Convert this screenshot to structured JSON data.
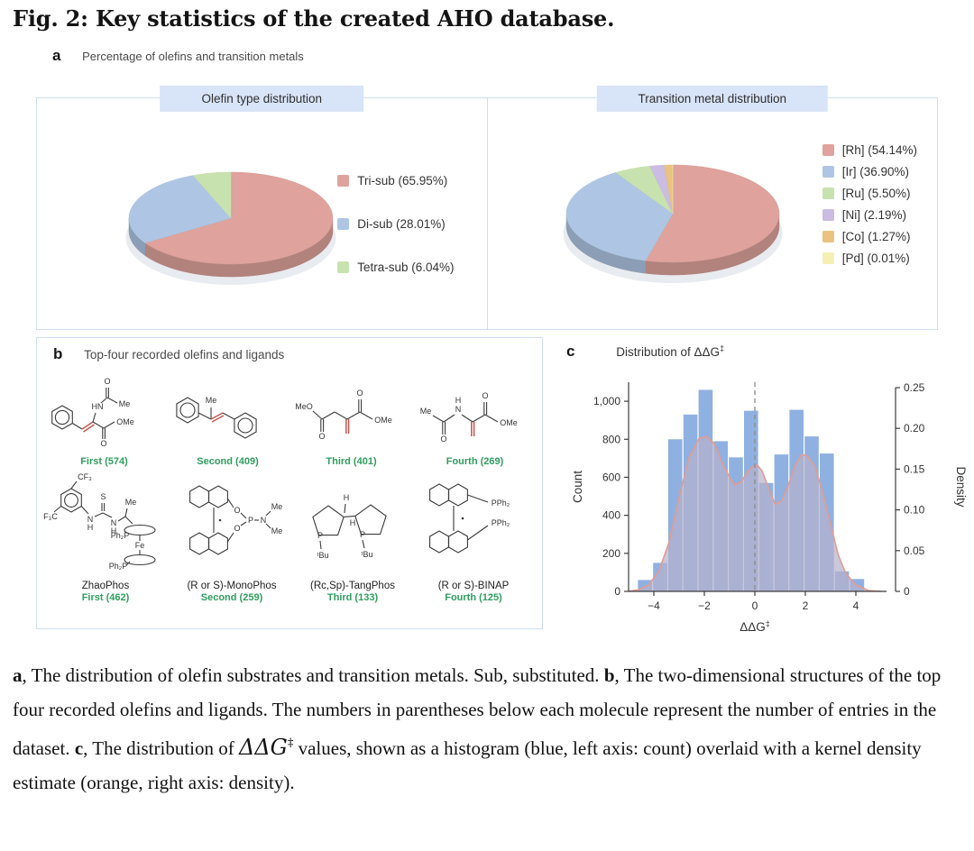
{
  "title": "Fig. 2: Key statistics of the created AHO database.",
  "panel_a": {
    "label": "a",
    "subtitle": "Percentage of olefins and transition metals",
    "olefin_pie_title": "Olefin type distribution",
    "metal_pie_title": "Transition metal distribution"
  },
  "panel_b": {
    "label": "b",
    "title": "Top-four recorded olefins and ligands",
    "olefins": [
      {
        "rank_label": "First (574)",
        "atoms": [
          "HN",
          "O",
          "Me",
          "O",
          "OMe"
        ]
      },
      {
        "rank_label": "Second (409)",
        "atoms": [
          "Me"
        ]
      },
      {
        "rank_label": "Third (401)",
        "atoms": [
          "MeO",
          "O",
          "O",
          "OMe"
        ]
      },
      {
        "rank_label": "Fourth (269)",
        "atoms": [
          "Me",
          "O",
          "H",
          "N",
          "O",
          "OMe"
        ]
      }
    ],
    "ligands": [
      {
        "name": "ZhaoPhos",
        "rank_label": "First (462)",
        "atoms": [
          "CF₃",
          "F₃C",
          "N",
          "H",
          "S",
          "N",
          "H",
          "Me",
          "Ph₂P",
          "Fe",
          "Ph₂P"
        ]
      },
      {
        "name": "(R or S)-MonoPhos",
        "rank_label": "Second (259)",
        "atoms": [
          "O",
          "O",
          "P",
          "N",
          "Me",
          "Me"
        ]
      },
      {
        "name": "(Rc,Sp)-TangPhos",
        "rank_label": "Third (133)",
        "atoms": [
          "H",
          "H",
          "P",
          "P",
          "ᵗBu",
          "ᵗBu"
        ]
      },
      {
        "name": "(R or S)-BINAP",
        "rank_label": "Fourth (125)",
        "atoms": [
          "PPh₂",
          "PPh₂"
        ]
      }
    ]
  },
  "panel_c": {
    "label": "c",
    "title": "Distribution of ΔΔG",
    "title_sup": "‡"
  },
  "caption": {
    "seg_a": "a",
    "text_a": ", The distribution of olefin substrates and transition metals. Sub, substituted. ",
    "seg_b": "b",
    "text_b": ", The two-dimensional structures of the top four recorded olefins and ligands. The numbers in parentheses below each molecule represent the number of entries in the dataset. ",
    "seg_c": "c",
    "text_c": ", The distribution of ",
    "formula": "ΔΔG",
    "formula_sup": "‡",
    "text_d": " values, shown as a histogram (blue, left axis: count) overlaid with a kernel density estimate (orange, right axis: density)."
  },
  "chart_data": [
    {
      "type": "pie",
      "title": "Olefin type distribution",
      "slices": [
        {
          "label": "Tri-sub (65.95%)",
          "value": 65.95,
          "color": "#dfa29c"
        },
        {
          "label": "Di-sub (28.01%)",
          "value": 28.01,
          "color": "#aec6e3"
        },
        {
          "label": "Tetra-sub (6.04%)",
          "value": 6.04,
          "color": "#c8e2af"
        }
      ],
      "legend_position": "right",
      "style": "3d"
    },
    {
      "type": "pie",
      "title": "Transition metal distribution",
      "slices": [
        {
          "label": "[Rh] (54.14%)",
          "value": 54.14,
          "color": "#dfa29c"
        },
        {
          "label": "[Ir] (36.90%)",
          "value": 36.9,
          "color": "#aec6e3"
        },
        {
          "label": "[Ru] (5.50%)",
          "value": 5.5,
          "color": "#c8e2af"
        },
        {
          "label": "[Ni] (2.19%)",
          "value": 2.19,
          "color": "#cbbce3"
        },
        {
          "label": "[Co] (1.27%)",
          "value": 1.27,
          "color": "#eac380"
        },
        {
          "label": "[Pd] (0.01%)",
          "value": 0.01,
          "color": "#f6efb3"
        }
      ],
      "legend_position": "right",
      "style": "3d"
    },
    {
      "type": "histogram+kde",
      "title": "Distribution of ΔΔG‡",
      "xlabel": "ΔΔG",
      "xlabel_sup": "‡",
      "ylabel_left": "Count",
      "ylabel_right": "Density",
      "xlim": [
        -5,
        5
      ],
      "ylim_left": [
        0,
        1100
      ],
      "ylim_right": [
        0,
        0.25
      ],
      "xticks": [
        "−4",
        "−2",
        "0",
        "2",
        "4"
      ],
      "xtick_values": [
        -4,
        -2,
        0,
        2,
        4
      ],
      "ytick_values_left": [
        0,
        200,
        400,
        600,
        800,
        1000
      ],
      "ytick_labels_left": [
        "0",
        "200",
        "400",
        "600",
        "800",
        "1,000"
      ],
      "ytick_values_right": [
        0,
        0.05,
        0.1,
        0.15,
        0.2,
        0.25
      ],
      "ytick_labels_right": [
        "0",
        "0.05",
        "0.10",
        "0.15",
        "0.20",
        "0.25"
      ],
      "vline_x": 0,
      "bins": {
        "start": -4.65,
        "width": 0.6,
        "counts": [
          60,
          150,
          800,
          930,
          1060,
          790,
          705,
          950,
          570,
          720,
          955,
          815,
          725,
          105,
          65
        ]
      },
      "kde": {
        "x": [
          -5,
          -4.6,
          -4.2,
          -3.8,
          -3.4,
          -3.0,
          -2.6,
          -2.2,
          -1.9,
          -1.6,
          -1.3,
          -1.0,
          -0.8,
          -0.55,
          -0.3,
          -0.1,
          0.1,
          0.3,
          0.55,
          0.8,
          1.05,
          1.3,
          1.6,
          1.85,
          2.1,
          2.4,
          2.7,
          3.0,
          3.3,
          3.6,
          4.0,
          4.5,
          5
        ],
        "density": [
          0,
          0.002,
          0.008,
          0.025,
          0.06,
          0.115,
          0.165,
          0.188,
          0.19,
          0.181,
          0.158,
          0.14,
          0.131,
          0.134,
          0.146,
          0.153,
          0.155,
          0.147,
          0.126,
          0.107,
          0.111,
          0.128,
          0.155,
          0.168,
          0.166,
          0.152,
          0.12,
          0.082,
          0.045,
          0.022,
          0.008,
          0.001,
          0
        ]
      },
      "bar_color": "#8fb1e1",
      "kde_fill_color": "#b5b0cc",
      "kde_line_color": "#e39b92",
      "vline_color": "#8a8a8a",
      "grid": false,
      "legend_position": "none"
    }
  ]
}
